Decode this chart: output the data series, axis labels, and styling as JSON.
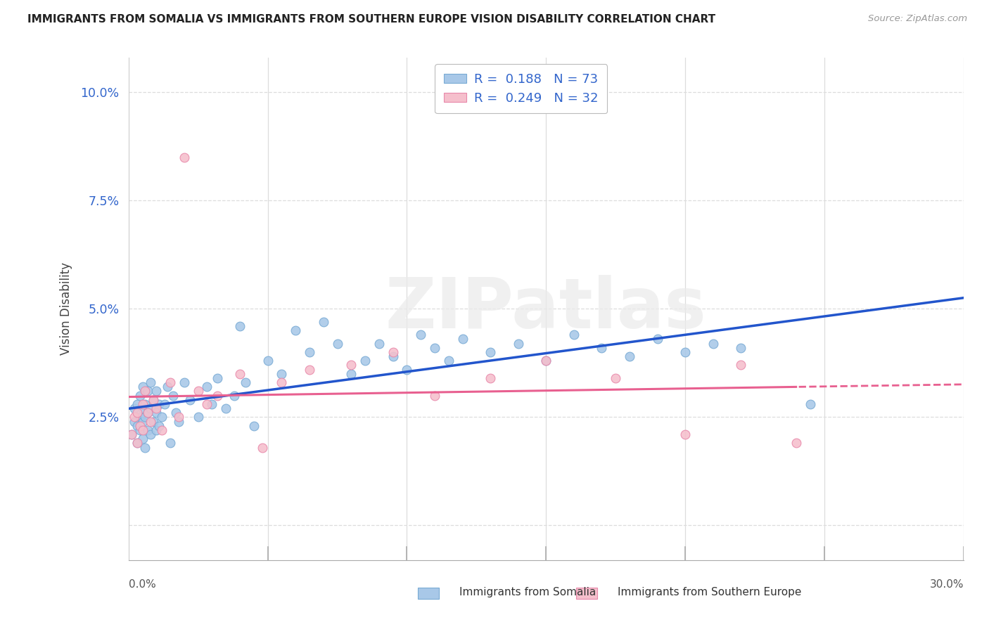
{
  "title": "IMMIGRANTS FROM SOMALIA VS IMMIGRANTS FROM SOUTHERN EUROPE VISION DISABILITY CORRELATION CHART",
  "source": "Source: ZipAtlas.com",
  "ylabel": "Vision Disability",
  "xlim": [
    0.0,
    0.3
  ],
  "ylim": [
    -0.008,
    0.108
  ],
  "yticks": [
    0.0,
    0.025,
    0.05,
    0.075,
    0.1
  ],
  "ytick_labels": [
    "",
    "2.5%",
    "5.0%",
    "7.5%",
    "10.0%"
  ],
  "legend1_text": "R =  0.188   N = 73",
  "legend2_text": "R =  0.249   N = 32",
  "somalia_color": "#a8c8e8",
  "somalia_edge": "#78aad4",
  "se_color": "#f5bfcc",
  "se_edge": "#e888aa",
  "somalia_line_color": "#2255cc",
  "se_line_color": "#e86090",
  "bg_color": "#ffffff",
  "watermark": "ZIPatlas",
  "watermark_color": "#ebebeb",
  "grid_color": "#dddddd",
  "title_color": "#222222",
  "tick_label_color": "#3366cc",
  "legend_text_color": "#3366cc",
  "bottom_legend_color": "#333333",
  "somalia_x": [
    0.001,
    0.002,
    0.002,
    0.003,
    0.003,
    0.003,
    0.004,
    0.004,
    0.004,
    0.005,
    0.005,
    0.005,
    0.005,
    0.006,
    0.006,
    0.006,
    0.007,
    0.007,
    0.007,
    0.008,
    0.008,
    0.008,
    0.009,
    0.009,
    0.01,
    0.01,
    0.01,
    0.011,
    0.011,
    0.012,
    0.013,
    0.014,
    0.015,
    0.016,
    0.017,
    0.018,
    0.02,
    0.022,
    0.025,
    0.028,
    0.03,
    0.032,
    0.035,
    0.038,
    0.04,
    0.042,
    0.045,
    0.05,
    0.055,
    0.06,
    0.065,
    0.07,
    0.075,
    0.08,
    0.085,
    0.09,
    0.095,
    0.1,
    0.105,
    0.11,
    0.115,
    0.12,
    0.13,
    0.14,
    0.15,
    0.16,
    0.17,
    0.18,
    0.19,
    0.2,
    0.21,
    0.22,
    0.245
  ],
  "somalia_y": [
    0.021,
    0.024,
    0.027,
    0.019,
    0.023,
    0.028,
    0.022,
    0.025,
    0.03,
    0.02,
    0.024,
    0.027,
    0.032,
    0.018,
    0.025,
    0.028,
    0.022,
    0.026,
    0.031,
    0.021,
    0.027,
    0.033,
    0.024,
    0.029,
    0.022,
    0.026,
    0.031,
    0.023,
    0.028,
    0.025,
    0.028,
    0.032,
    0.019,
    0.03,
    0.026,
    0.024,
    0.033,
    0.029,
    0.025,
    0.032,
    0.028,
    0.034,
    0.027,
    0.03,
    0.046,
    0.033,
    0.023,
    0.038,
    0.035,
    0.045,
    0.04,
    0.047,
    0.042,
    0.035,
    0.038,
    0.042,
    0.039,
    0.036,
    0.044,
    0.041,
    0.038,
    0.043,
    0.04,
    0.042,
    0.038,
    0.044,
    0.041,
    0.039,
    0.043,
    0.04,
    0.042,
    0.041,
    0.028
  ],
  "se_x": [
    0.001,
    0.002,
    0.003,
    0.003,
    0.004,
    0.005,
    0.005,
    0.006,
    0.007,
    0.008,
    0.009,
    0.01,
    0.012,
    0.015,
    0.018,
    0.02,
    0.025,
    0.028,
    0.032,
    0.04,
    0.048,
    0.055,
    0.065,
    0.08,
    0.095,
    0.11,
    0.13,
    0.15,
    0.175,
    0.2,
    0.22,
    0.24
  ],
  "se_y": [
    0.021,
    0.025,
    0.019,
    0.026,
    0.023,
    0.028,
    0.022,
    0.031,
    0.026,
    0.024,
    0.029,
    0.027,
    0.022,
    0.033,
    0.025,
    0.085,
    0.031,
    0.028,
    0.03,
    0.035,
    0.018,
    0.033,
    0.036,
    0.037,
    0.04,
    0.03,
    0.034,
    0.038,
    0.034,
    0.021,
    0.037,
    0.019
  ]
}
